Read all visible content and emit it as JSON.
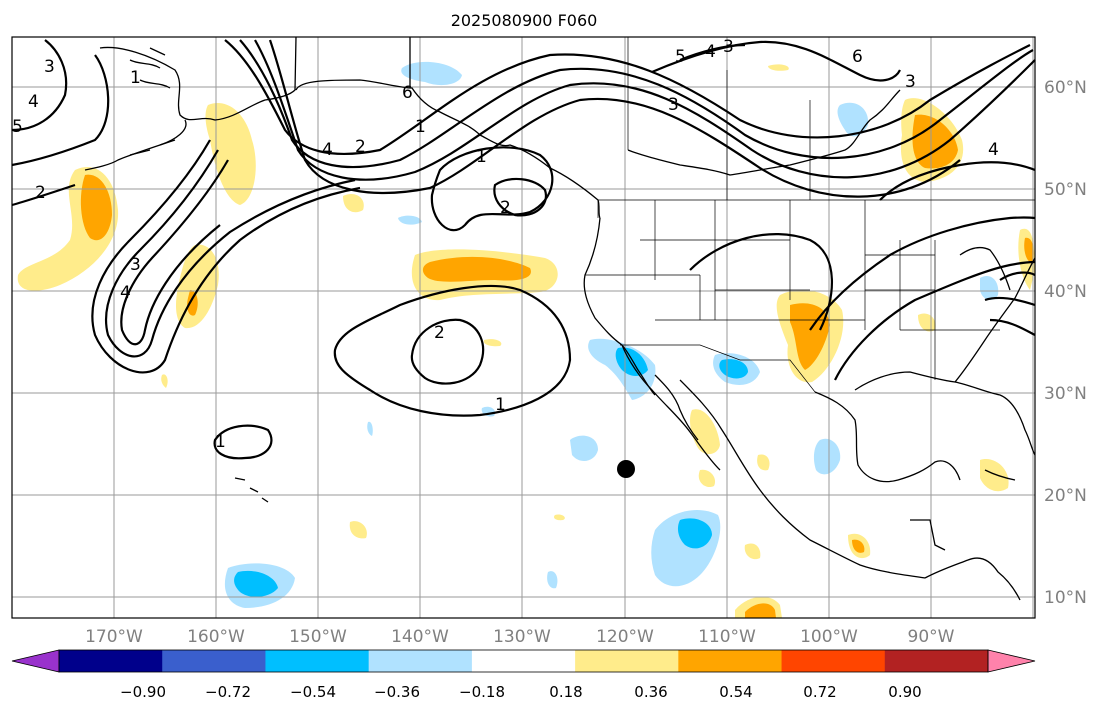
{
  "title": "2025080900 F060",
  "lat_labels": [
    "60°N",
    "50°N",
    "40°N",
    "30°N",
    "20°N",
    "10°N"
  ],
  "lon_labels": [
    "170°W",
    "160°W",
    "150°W",
    "140°W",
    "130°W",
    "120°W",
    "110°W",
    "100°W",
    "90°W"
  ],
  "contour_labels": [
    "3",
    "4",
    "5",
    "2",
    "3",
    "4",
    "1",
    "4",
    "2",
    "1",
    "6",
    "5",
    "4",
    "3",
    "6",
    "3",
    "4",
    "1",
    "2",
    "2",
    "1",
    "1",
    "3"
  ],
  "colorbar": {
    "tick_labels": [
      "−0.90",
      "−0.72",
      "−0.54",
      "−0.36",
      "−0.18",
      "0.18",
      "0.36",
      "0.54",
      "0.72",
      "0.90"
    ],
    "colors": [
      "#9932cc",
      "#00008b",
      "#3a5fcd",
      "#00bfff",
      "#b0e2ff",
      "#ffffff",
      "#ffec8b",
      "#ffa500",
      "#ff4500",
      "#b22222",
      "#ff82ab"
    ]
  },
  "marker": "storm-center-dot"
}
